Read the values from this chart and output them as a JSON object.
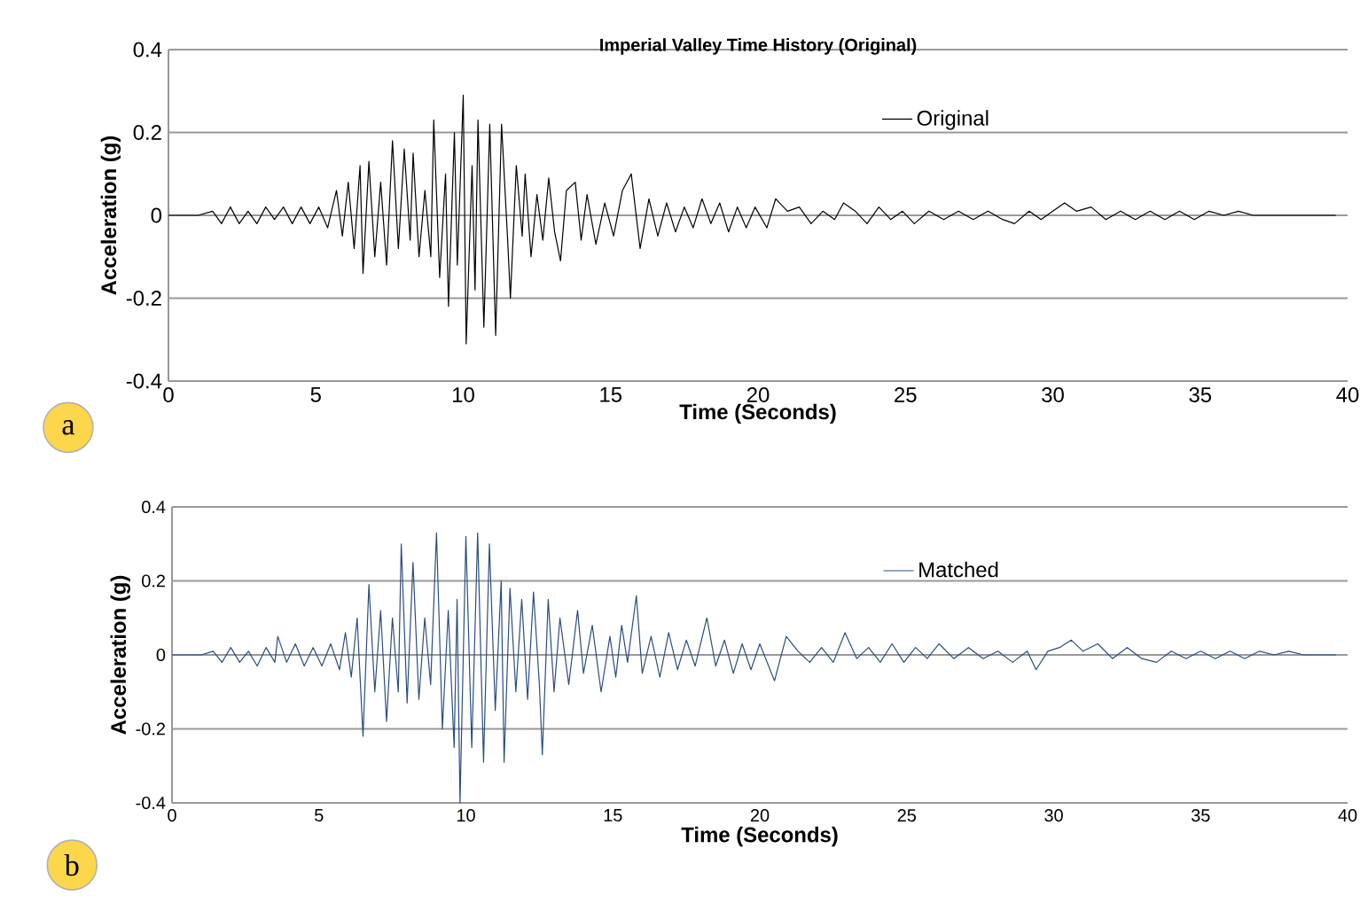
{
  "chart_data": [
    {
      "type": "line",
      "title": "Imperial Valley Time History (Original)",
      "xlabel": "Time (Seconds)",
      "ylabel": "Acceleration (g)",
      "xlim": [
        0,
        40
      ],
      "ylim": [
        -0.4,
        0.4
      ],
      "xticks": [
        0,
        5,
        10,
        15,
        20,
        25,
        30,
        35,
        40
      ],
      "yticks": [
        -0.4,
        -0.2,
        0,
        0.2,
        0.4
      ],
      "grid": "y",
      "legend": "top right",
      "annotations": [
        "a"
      ],
      "series": [
        {
          "name": "Original",
          "color": "#000000",
          "x": [
            0,
            1.0,
            1.5,
            1.8,
            2.1,
            2.4,
            2.7,
            3.0,
            3.3,
            3.6,
            3.9,
            4.2,
            4.5,
            4.8,
            5.1,
            5.4,
            5.7,
            5.9,
            6.1,
            6.3,
            6.5,
            6.6,
            6.8,
            7.0,
            7.2,
            7.4,
            7.6,
            7.8,
            8.0,
            8.2,
            8.3,
            8.5,
            8.7,
            8.9,
            9.0,
            9.2,
            9.4,
            9.5,
            9.7,
            9.8,
            10.0,
            10.1,
            10.3,
            10.4,
            10.5,
            10.7,
            10.9,
            11.1,
            11.3,
            11.5,
            11.6,
            11.8,
            12.0,
            12.1,
            12.3,
            12.5,
            12.7,
            12.9,
            13.1,
            13.3,
            13.5,
            13.8,
            14.0,
            14.2,
            14.5,
            14.8,
            15.1,
            15.4,
            15.7,
            16.0,
            16.3,
            16.6,
            16.9,
            17.2,
            17.5,
            17.8,
            18.1,
            18.4,
            18.7,
            19.0,
            19.3,
            19.6,
            19.9,
            20.3,
            20.6,
            21.0,
            21.4,
            21.8,
            22.2,
            22.6,
            22.9,
            23.3,
            23.7,
            24.1,
            24.5,
            24.9,
            25.3,
            25.8,
            26.3,
            26.8,
            27.3,
            27.8,
            28.3,
            28.7,
            29.2,
            29.6,
            30.0,
            30.4,
            30.8,
            31.3,
            31.8,
            32.3,
            32.8,
            33.3,
            33.8,
            34.3,
            34.8,
            35.3,
            35.8,
            36.3,
            36.8,
            37.3,
            37.8,
            38.3,
            39.0,
            39.6
          ],
          "values": [
            0,
            0,
            0.01,
            -0.02,
            0.02,
            -0.02,
            0.01,
            -0.02,
            0.02,
            -0.01,
            0.02,
            -0.02,
            0.02,
            -0.02,
            0.02,
            -0.03,
            0.06,
            -0.05,
            0.08,
            -0.08,
            0.12,
            -0.14,
            0.13,
            -0.1,
            0.08,
            -0.12,
            0.18,
            -0.08,
            0.16,
            -0.06,
            0.15,
            -0.1,
            0.06,
            -0.1,
            0.23,
            -0.15,
            0.1,
            -0.22,
            0.2,
            -0.12,
            0.29,
            -0.31,
            0.12,
            -0.18,
            0.23,
            -0.27,
            0.22,
            -0.29,
            0.22,
            -0.05,
            -0.2,
            0.12,
            -0.05,
            0.1,
            -0.1,
            0.05,
            -0.06,
            0.09,
            -0.04,
            -0.11,
            0.06,
            0.08,
            -0.06,
            0.05,
            -0.07,
            0.03,
            -0.05,
            0.06,
            0.1,
            -0.08,
            0.04,
            -0.05,
            0.03,
            -0.04,
            0.02,
            -0.03,
            0.04,
            -0.02,
            0.03,
            -0.04,
            0.02,
            -0.03,
            0.02,
            -0.03,
            0.04,
            0.01,
            0.02,
            -0.02,
            0.01,
            -0.01,
            0.03,
            0.01,
            -0.02,
            0.02,
            -0.01,
            0.01,
            -0.02,
            0.01,
            -0.01,
            0.01,
            -0.01,
            0.01,
            -0.01,
            -0.02,
            0.01,
            -0.01,
            0.01,
            0.03,
            0.01,
            0.02,
            -0.01,
            0.01,
            -0.01,
            0.01,
            -0.01,
            0.01,
            -0.01,
            0.01,
            0,
            0.01,
            0,
            0,
            0,
            0,
            0,
            0
          ]
        }
      ]
    },
    {
      "type": "line",
      "xlabel": "Time (Seconds)",
      "ylabel": "Acceleration (g)",
      "xlim": [
        0,
        40
      ],
      "ylim": [
        -0.4,
        0.4
      ],
      "xticks": [
        0,
        5,
        10,
        15,
        20,
        25,
        30,
        35,
        40
      ],
      "yticks": [
        -0.4,
        -0.2,
        0,
        0.2,
        0.4
      ],
      "grid": "y",
      "legend": "top right",
      "annotations": [
        "b"
      ],
      "series": [
        {
          "name": "Matched",
          "color": "#2a4d80",
          "x": [
            0,
            1.0,
            1.4,
            1.7,
            2.0,
            2.3,
            2.6,
            2.9,
            3.2,
            3.5,
            3.6,
            3.9,
            4.2,
            4.5,
            4.8,
            5.1,
            5.4,
            5.7,
            5.9,
            6.1,
            6.3,
            6.5,
            6.7,
            6.9,
            7.1,
            7.3,
            7.5,
            7.7,
            7.8,
            8.0,
            8.2,
            8.4,
            8.6,
            8.8,
            9.0,
            9.2,
            9.4,
            9.6,
            9.7,
            9.8,
            10.0,
            10.2,
            10.4,
            10.6,
            10.8,
            11.0,
            11.2,
            11.3,
            11.5,
            11.7,
            11.9,
            12.1,
            12.3,
            12.5,
            12.6,
            12.8,
            13.0,
            13.2,
            13.5,
            13.8,
            14.0,
            14.3,
            14.6,
            14.9,
            15.1,
            15.3,
            15.5,
            15.8,
            16.0,
            16.3,
            16.6,
            16.9,
            17.2,
            17.5,
            17.8,
            18.2,
            18.5,
            18.8,
            19.1,
            19.4,
            19.7,
            20.0,
            20.5,
            20.9,
            21.3,
            21.7,
            22.1,
            22.5,
            22.9,
            23.3,
            23.7,
            24.1,
            24.5,
            24.9,
            25.3,
            25.7,
            26.1,
            26.6,
            27.1,
            27.6,
            28.1,
            28.6,
            29.1,
            29.4,
            29.8,
            30.2,
            30.6,
            31.0,
            31.5,
            32.0,
            32.5,
            33.0,
            33.5,
            34.0,
            34.5,
            35.0,
            35.5,
            36.0,
            36.5,
            37.0,
            37.5,
            38.0,
            38.5,
            39.6
          ],
          "values": [
            0,
            0,
            0.01,
            -0.02,
            0.02,
            -0.02,
            0.01,
            -0.03,
            0.02,
            -0.02,
            0.05,
            -0.02,
            0.03,
            -0.03,
            0.02,
            -0.03,
            0.03,
            -0.04,
            0.06,
            -0.06,
            0.1,
            -0.22,
            0.19,
            -0.1,
            0.12,
            -0.18,
            0.1,
            -0.1,
            0.3,
            -0.13,
            0.25,
            -0.12,
            0.1,
            -0.08,
            0.33,
            -0.2,
            0.12,
            -0.25,
            0.15,
            -0.4,
            0.32,
            -0.25,
            0.33,
            -0.29,
            0.3,
            -0.15,
            0.2,
            -0.29,
            0.18,
            -0.1,
            0.15,
            -0.12,
            0.17,
            -0.08,
            -0.27,
            0.15,
            -0.1,
            0.1,
            -0.08,
            0.12,
            -0.05,
            0.08,
            -0.1,
            0.05,
            -0.06,
            0.08,
            -0.02,
            0.16,
            -0.05,
            0.05,
            -0.06,
            0.06,
            -0.04,
            0.04,
            -0.03,
            0.1,
            -0.03,
            0.04,
            -0.05,
            0.03,
            -0.04,
            0.03,
            -0.07,
            0.05,
            0.01,
            -0.02,
            0.02,
            -0.02,
            0.06,
            -0.01,
            0.02,
            -0.02,
            0.03,
            -0.02,
            0.02,
            -0.01,
            0.03,
            -0.01,
            0.02,
            -0.01,
            0.01,
            -0.02,
            0.01,
            -0.04,
            0.01,
            0.02,
            0.04,
            0.01,
            0.03,
            -0.01,
            0.02,
            -0.01,
            -0.02,
            0.01,
            -0.01,
            0.01,
            -0.01,
            0.01,
            -0.01,
            0.01,
            0,
            0.01,
            0,
            0
          ]
        }
      ]
    }
  ]
}
